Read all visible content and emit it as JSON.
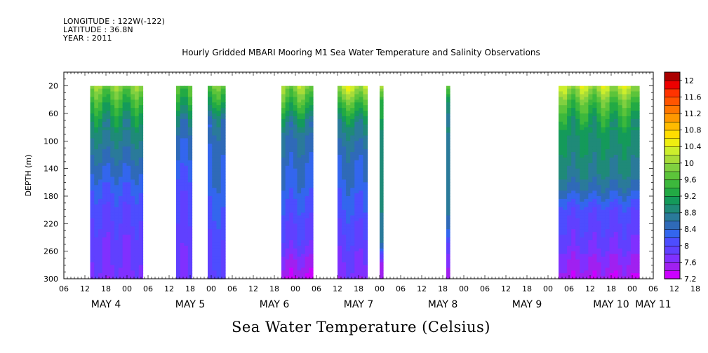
{
  "header": {
    "longitude": "LONGITUDE : 122W(-122)",
    "latitude": "LATITUDE : 36.8N",
    "year": "YEAR : 2011"
  },
  "chart_data": {
    "type": "heatmap",
    "title": "Hourly Gridded MBARI Mooring M1 Sea Water Temperature and Salinity Observations",
    "caption": "Sea Water Temperature (Celsius)",
    "ylabel": "DEPTH (m)",
    "ylim": [
      300,
      0
    ],
    "y_ticks": [
      20,
      60,
      100,
      140,
      180,
      220,
      260,
      300
    ],
    "x_range_hours": [
      0,
      168
    ],
    "x_hour_labels": [
      "06",
      "12",
      "18",
      "00",
      "06",
      "12",
      "18",
      "00",
      "06",
      "12",
      "18",
      "00",
      "06",
      "12",
      "18",
      "00",
      "06",
      "12",
      "18",
      "00",
      "06",
      "12",
      "18",
      "00",
      "06",
      "12",
      "18",
      "00",
      "06",
      "12",
      "18",
      "00",
      "06"
    ],
    "x_day_labels": [
      {
        "label": "MAY  4",
        "hour": 12
      },
      {
        "label": "MAY  5",
        "hour": 36
      },
      {
        "label": "MAY  6",
        "hour": 60
      },
      {
        "label": "MAY  7",
        "hour": 84
      },
      {
        "label": "MAY  8",
        "hour": 108
      },
      {
        "label": "MAY  9",
        "hour": 132
      },
      {
        "label": "MAY 10",
        "hour": 156
      },
      {
        "label": "MAY 11",
        "hour": 168
      }
    ],
    "colorbar": {
      "levels": [
        7.2,
        7.4,
        7.6,
        7.8,
        8.0,
        8.2,
        8.4,
        8.6,
        8.8,
        9.0,
        9.2,
        9.4,
        9.6,
        9.8,
        10.0,
        10.2,
        10.4,
        10.6,
        10.8,
        11.0,
        11.2,
        11.4,
        11.6,
        11.8,
        12.0,
        12.2
      ],
      "labels": [
        "7.2",
        "7.6",
        "8",
        "8.4",
        "8.8",
        "9.2",
        "9.6",
        "10",
        "10.4",
        "10.8",
        "11.2",
        "11.6",
        "12"
      ],
      "colors": [
        "#cc00ff",
        "#a020f0",
        "#8030ff",
        "#6040ff",
        "#4d4dff",
        "#3366ee",
        "#2f6ab8",
        "#2a7a9a",
        "#1f8a78",
        "#149a5a",
        "#22aa44",
        "#3cb83c",
        "#5cc43a",
        "#80d040",
        "#a8dc38",
        "#ccee2c",
        "#eeee10",
        "#ffdd00",
        "#ffbb00",
        "#ff9900",
        "#ff7700",
        "#ff5500",
        "#ff3300",
        "#ee0000",
        "#aa0000"
      ]
    },
    "data_segments": [
      {
        "start_hour": 7.5,
        "end_hour": 22.5,
        "profile_c": [
          9.9,
          9.4,
          9.0,
          8.8,
          8.6,
          8.4,
          8.2,
          8.05,
          7.95,
          7.85,
          7.8,
          7.7
        ]
      },
      {
        "start_hour": 32,
        "end_hour": 36.5,
        "profile_c": [
          9.7,
          9.3,
          8.8,
          8.5,
          8.4,
          8.2,
          8.1,
          8.0,
          7.95,
          7.9,
          7.85,
          7.8
        ]
      },
      {
        "start_hour": 41,
        "end_hour": 46,
        "profile_c": [
          9.7,
          9.2,
          8.6,
          8.5,
          8.4,
          8.4,
          8.3,
          8.2,
          8.1,
          8.0,
          7.95,
          7.9
        ]
      },
      {
        "start_hour": 62,
        "end_hour": 71,
        "profile_c": [
          10.0,
          9.5,
          8.9,
          8.6,
          8.5,
          8.4,
          8.3,
          8.15,
          8.0,
          7.9,
          7.6,
          7.4
        ]
      },
      {
        "start_hour": 78,
        "end_hour": 86.5,
        "profile_c": [
          10.3,
          9.6,
          9.0,
          8.7,
          8.5,
          8.45,
          8.3,
          8.2,
          8.05,
          7.95,
          7.8,
          7.7
        ]
      },
      {
        "start_hour": 90,
        "end_hour": 91,
        "profile_c": [
          9.8,
          9.0,
          8.9,
          8.85,
          8.8,
          8.8,
          8.75,
          8.7,
          8.6,
          8.5,
          7.5,
          7.3
        ]
      },
      {
        "start_hour": 109,
        "end_hour": 110,
        "profile_c": [
          10.0,
          9.2,
          8.95,
          8.9,
          8.85,
          8.85,
          8.8,
          8.8,
          8.6,
          8.1,
          7.8,
          7.6
        ]
      },
      {
        "start_hour": 141,
        "end_hour": 164,
        "profile_c": [
          10.2,
          9.6,
          9.2,
          9.0,
          8.9,
          8.8,
          8.5,
          8.1,
          7.95,
          7.85,
          7.6,
          7.45
        ]
      }
    ]
  }
}
